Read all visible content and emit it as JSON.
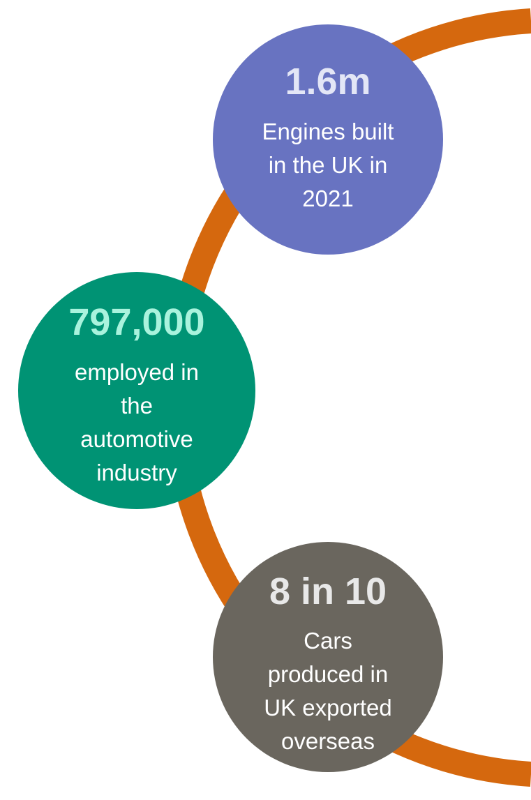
{
  "items": [
    {
      "headline": "1.6m",
      "lines": [
        "Engines built",
        "in the UK in",
        "2021"
      ]
    },
    {
      "headline": "797,000",
      "lines": [
        "employed in",
        "the",
        "automotive",
        "industry"
      ]
    },
    {
      "headline": "8 in 10",
      "lines": [
        "Cars",
        "produced in",
        "UK exported",
        "overseas"
      ]
    }
  ]
}
